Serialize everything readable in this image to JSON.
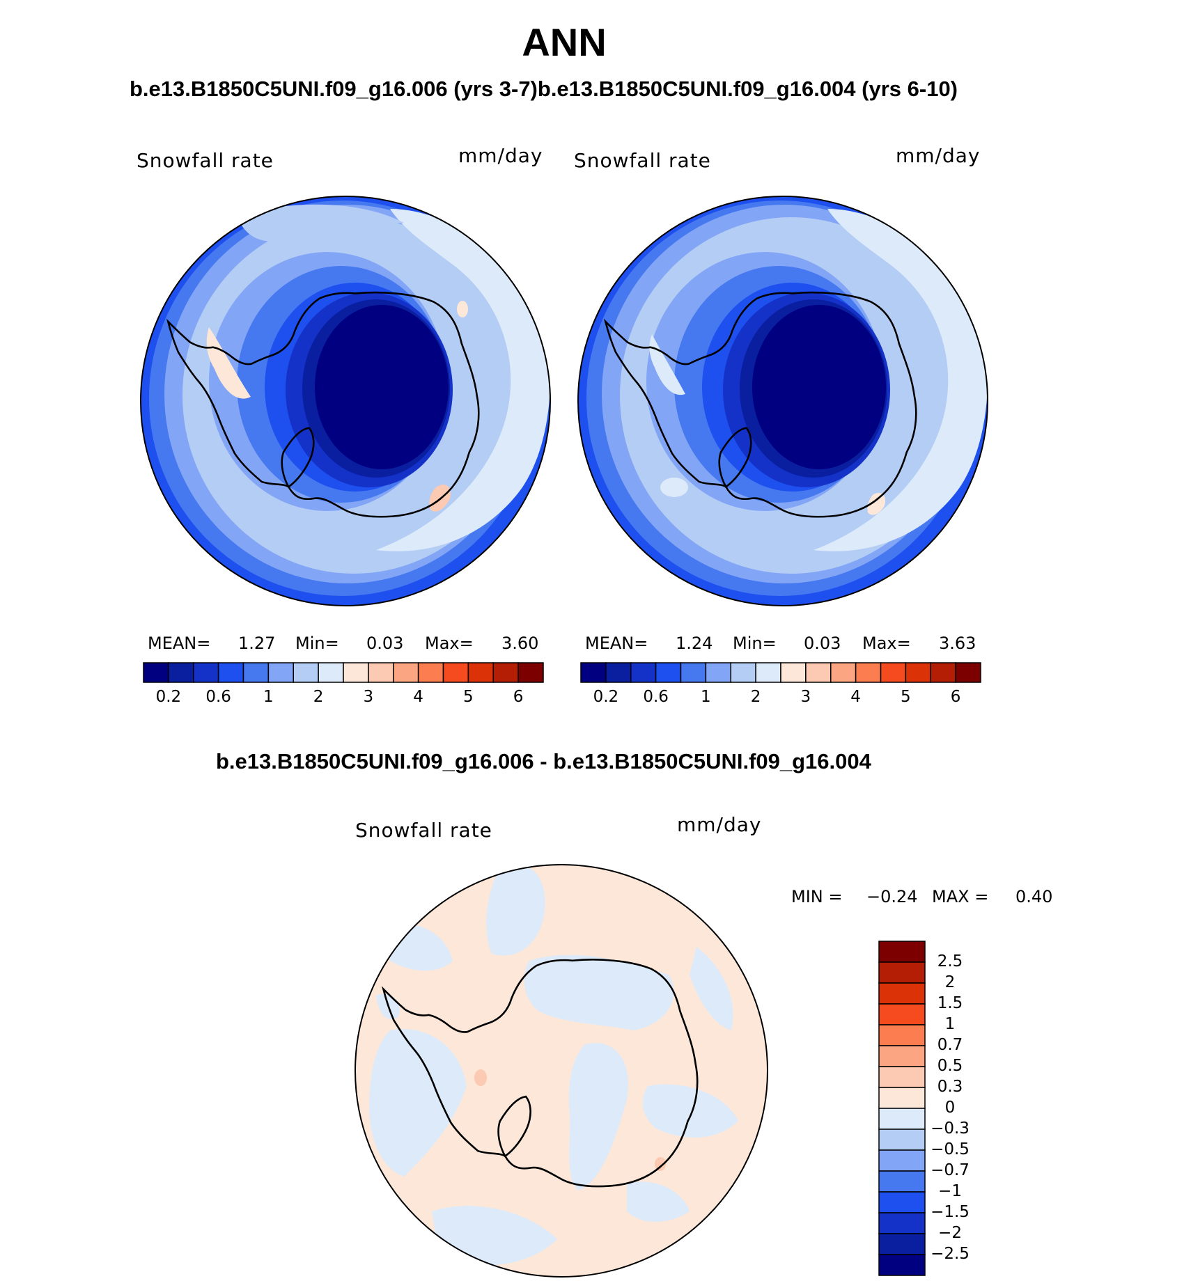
{
  "title": "ANN",
  "top_subtitle": "b.e13.B1850C5UNI.f09_g16.006 (yrs 3-7)b.e13.B1850C5UNI.f09_g16.004 (yrs 6-10)",
  "diff_subtitle": "b.e13.B1850C5UNI.f09_g16.006 - b.e13.B1850C5UNI.f09_g16.004",
  "panels": [
    {
      "variable": "Snowfall rate",
      "units": "mm/day",
      "stats": {
        "mean_label": "MEAN=",
        "mean": "1.27",
        "min_label": "Min=",
        "min": "0.03",
        "max_label": "Max=",
        "max": "3.60"
      }
    },
    {
      "variable": "Snowfall rate",
      "units": "mm/day",
      "stats": {
        "mean_label": "MEAN=",
        "mean": "1.24",
        "min_label": "Min=",
        "min": "0.03",
        "max_label": "Max=",
        "max": "3.63"
      }
    },
    {
      "variable": "Snowfall rate",
      "units": "mm/day",
      "stats": {
        "min_label": "MIN =",
        "min": "−0.24",
        "max_label": "MAX =",
        "max": "0.40"
      }
    }
  ],
  "colorbar_top": {
    "colors": [
      "#000080",
      "#0a1ea0",
      "#1432c8",
      "#1e50f0",
      "#4678f0",
      "#82a5f5",
      "#b4cdf5",
      "#dceafa",
      "#fde7d9",
      "#fcc9b2",
      "#fca582",
      "#fc7d50",
      "#f64b1e",
      "#dc3208",
      "#b41e05",
      "#7d0000"
    ],
    "tick_labels": [
      "0.2",
      "0.6",
      "1",
      "2",
      "3",
      "4",
      "5",
      "6"
    ]
  },
  "colorbar_diff": {
    "colors": [
      "#7d0000",
      "#b41e05",
      "#dc3208",
      "#f64b1e",
      "#fc7d50",
      "#fca582",
      "#fcc9b2",
      "#fde7d9",
      "#dceafa",
      "#b4cdf5",
      "#82a5f5",
      "#4678f0",
      "#1e50f0",
      "#1432c8",
      "#0a1ea0",
      "#000080"
    ],
    "tick_labels": [
      "2.5",
      "2",
      "1.5",
      "1",
      "0.7",
      "0.5",
      "0.3",
      "0",
      "−0.3",
      "−0.5",
      "−0.7",
      "−1",
      "−1.5",
      "−2",
      "−2.5"
    ]
  }
}
